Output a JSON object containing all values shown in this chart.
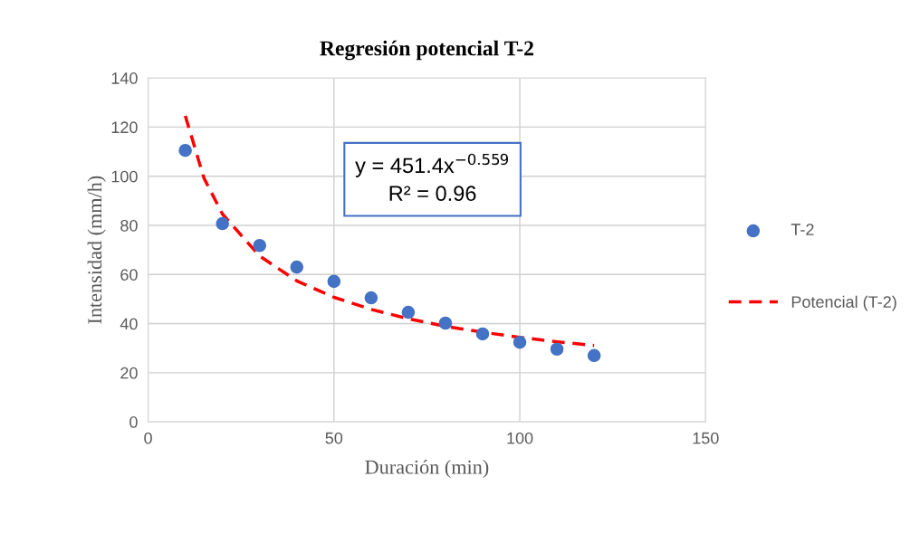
{
  "chart_data": {
    "type": "scatter",
    "title": "Regresión potencial T-2",
    "xlabel": "Duración (min)",
    "ylabel": "Intensidad (mm/h)",
    "x": [
      10,
      20,
      30,
      40,
      50,
      60,
      70,
      80,
      90,
      100,
      110,
      120
    ],
    "series": [
      {
        "name": "T-2",
        "color": "#4472c4",
        "marker": "circle",
        "values": [
          110.5,
          80.7,
          71.8,
          63.0,
          57.2,
          50.5,
          44.6,
          40.2,
          35.8,
          32.4,
          29.6,
          27.0
        ]
      },
      {
        "name": "Potencial (T-2)",
        "type": "line",
        "color": "#ff0000",
        "line_style": "dashed",
        "marker": "none",
        "x": [
          10,
          15,
          20,
          30,
          40,
          50,
          60,
          70,
          80,
          90,
          100,
          110,
          120
        ],
        "values": [
          124.6,
          99.3,
          84.6,
          67.5,
          57.4,
          50.7,
          45.8,
          42.0,
          38.9,
          36.5,
          34.4,
          32.6,
          31.1
        ]
      }
    ],
    "annotations": [
      "y = 451.4x$^{−0.559}$",
      "R² = 0.96"
    ],
    "xlim": [
      0,
      150
    ],
    "xticks": [
      0,
      50,
      100,
      150
    ],
    "ylim": [
      0,
      140
    ],
    "yticks": [
      0,
      20,
      40,
      60,
      80,
      100,
      120,
      140
    ],
    "grid": true,
    "legend": "right"
  }
}
